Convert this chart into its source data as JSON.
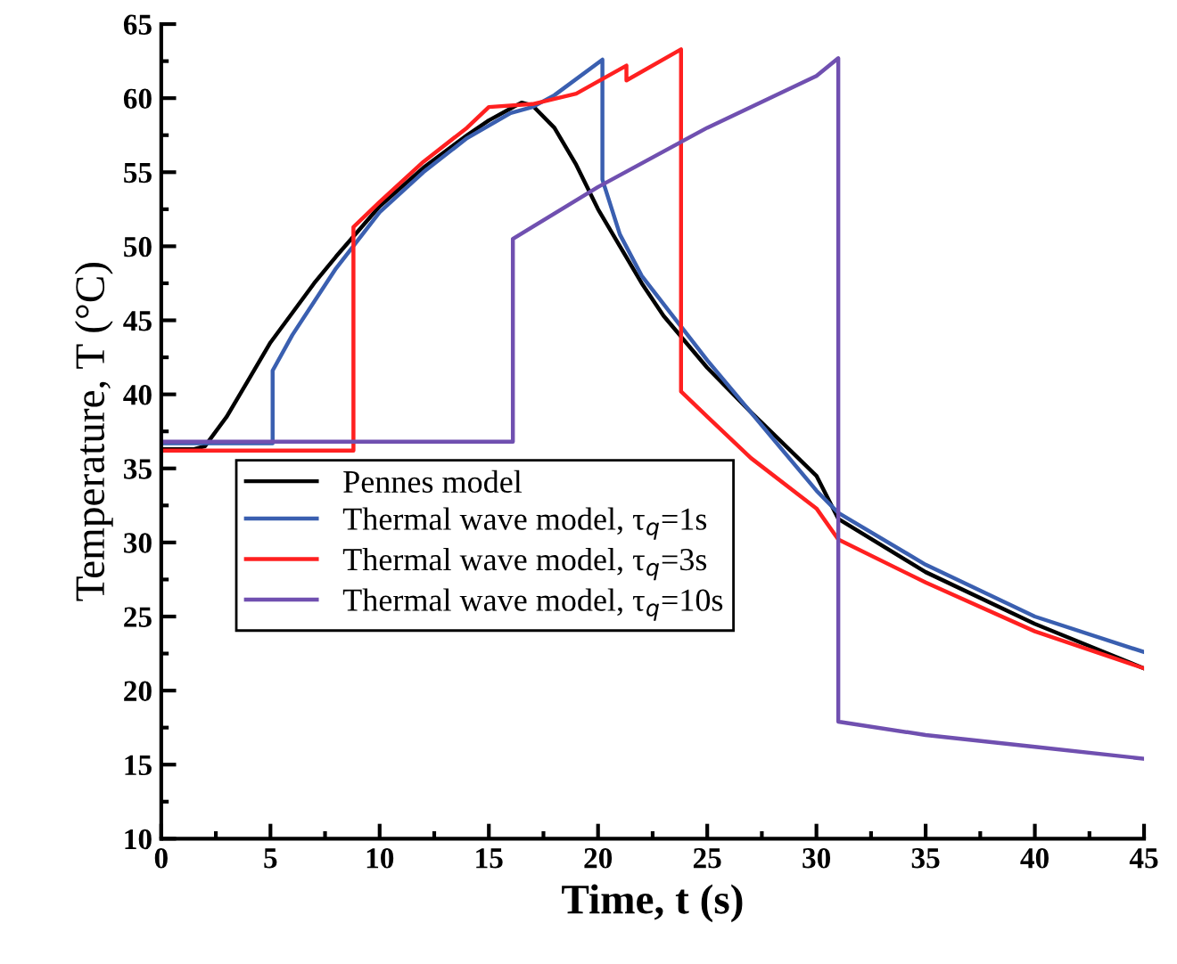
{
  "chart_data": {
    "type": "line",
    "xlabel": "Time, t (s)",
    "ylabel": "Temperature, T (°C)",
    "xlim": [
      0,
      45
    ],
    "xticks": [
      0,
      5,
      10,
      15,
      20,
      25,
      30,
      35,
      40,
      45
    ],
    "ylim": [
      10,
      65
    ],
    "yticks": [
      10,
      15,
      20,
      25,
      30,
      35,
      40,
      45,
      50,
      55,
      60,
      65
    ],
    "grid": false,
    "legend": "left",
    "marker": "none",
    "line_style": "solid",
    "series": [
      {
        "name": "Pennes model",
        "color": "#000000",
        "x": [
          0,
          1.5,
          2,
          3,
          4,
          5,
          6,
          7,
          8,
          9,
          10,
          12,
          14,
          15,
          16,
          16.5,
          17,
          18,
          19,
          20,
          21,
          22,
          23,
          25,
          27,
          30,
          31,
          35,
          40,
          45
        ],
        "values": [
          36.3,
          36.3,
          36.5,
          38.5,
          41,
          43.5,
          45.5,
          47.5,
          49.3,
          51,
          52.7,
          55.3,
          57.5,
          58.5,
          59.3,
          59.7,
          59.5,
          58,
          55.5,
          52.5,
          50,
          47.5,
          45.3,
          41.8,
          38.8,
          34.5,
          31.6,
          28,
          24.5,
          21.5
        ]
      },
      {
        "name": "Thermal wave model, τ$_{q}$=1s",
        "color": "#3a5fb0",
        "x": [
          0,
          5.1,
          5.1,
          6,
          8,
          10,
          12,
          14,
          16,
          17,
          18,
          20.2,
          20.2,
          21,
          22,
          25,
          30,
          31,
          35,
          40,
          45
        ],
        "values": [
          36.7,
          36.7,
          41.6,
          44,
          48.5,
          52.3,
          55,
          57.3,
          59,
          59.4,
          60.2,
          62.6,
          54.5,
          50.8,
          48,
          42.3,
          33.5,
          32,
          28.5,
          25,
          22.6
        ]
      },
      {
        "name": "Thermal wave model, τ$_{q}$=3s",
        "color": "#ff2020",
        "x": [
          0,
          8.8,
          8.8,
          10,
          12,
          14,
          15,
          17,
          19,
          21.3,
          21.3,
          23.8,
          23.8,
          25,
          27,
          30,
          31,
          35,
          40,
          45
        ],
        "values": [
          36.2,
          36.2,
          51.3,
          53,
          55.7,
          58,
          59.4,
          59.6,
          60.3,
          62.2,
          61.2,
          63.3,
          40.2,
          38.5,
          35.7,
          32.3,
          30.2,
          27.3,
          24,
          21.5
        ]
      },
      {
        "name": "Thermal wave model, τ$_{q}$=10s",
        "color": "#7050b0",
        "x": [
          0,
          16.1,
          16.1,
          20,
          25,
          30,
          31,
          31,
          35,
          40,
          45
        ],
        "values": [
          36.8,
          36.8,
          50.5,
          54,
          58,
          61.5,
          62.7,
          17.9,
          17,
          16.2,
          15.4
        ]
      }
    ]
  }
}
